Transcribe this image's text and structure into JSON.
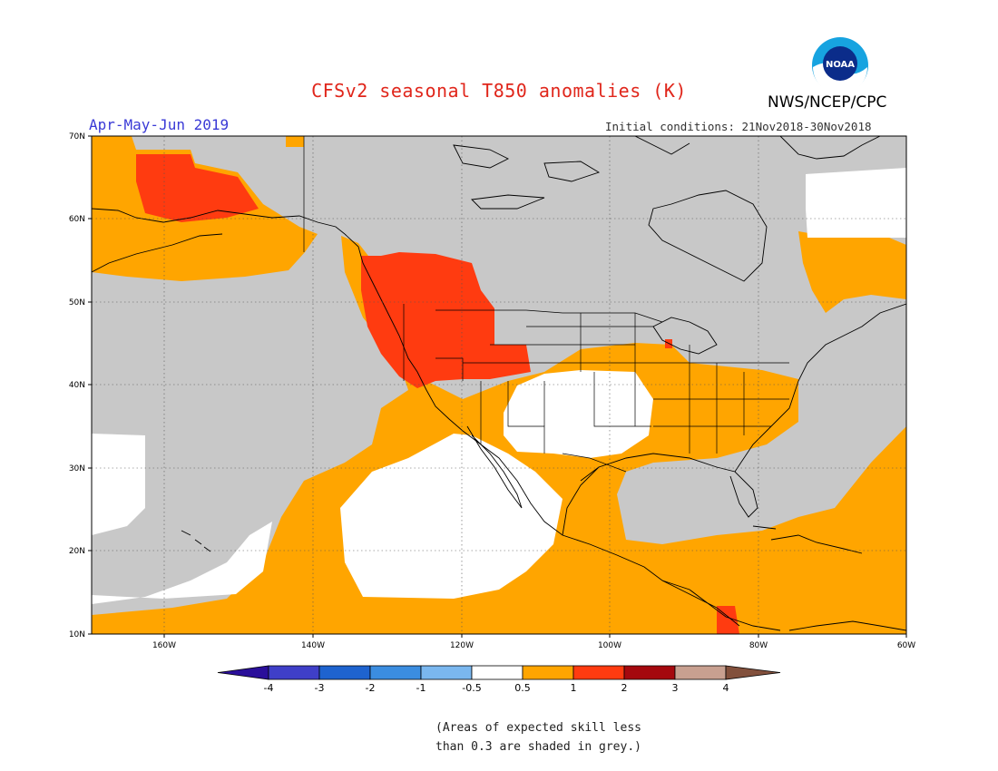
{
  "title": "CFSv2 seasonal T850 anomalies (K)",
  "agency": "NWS/NCEP/CPC",
  "logo_text": "NOAA",
  "period": "Apr-May-Jun 2019",
  "initial_conditions": "Initial conditions: 21Nov2018-30Nov2018",
  "lat_labels": [
    "70N",
    "60N",
    "50N",
    "40N",
    "30N",
    "20N",
    "10N"
  ],
  "lon_labels": [
    "160W",
    "140W",
    "120W",
    "100W",
    "80W",
    "60W"
  ],
  "colorbar": {
    "labels": [
      "-4",
      "-3",
      "-2",
      "-1",
      "-0.5",
      "0.5",
      "1",
      "2",
      "3",
      "4"
    ],
    "colors": [
      "#2a0f9a",
      "#3f3fc8",
      "#1e63cf",
      "#3b8de0",
      "#7ab7ef",
      "#ffffff",
      "#ffa500",
      "#ff3b10",
      "#a5080e",
      "#c8a090",
      "#82503c"
    ]
  },
  "note_lines": [
    "(Areas of expected skill less",
    "than 0.3 are shaded in grey.)"
  ],
  "map_colors": {
    "ocean_grey": "#c8c8c8",
    "anomaly_05_1": "#ffa500",
    "anomaly_1_2": "#ff3b10",
    "neutral": "#ffffff",
    "coast": "#000000"
  }
}
